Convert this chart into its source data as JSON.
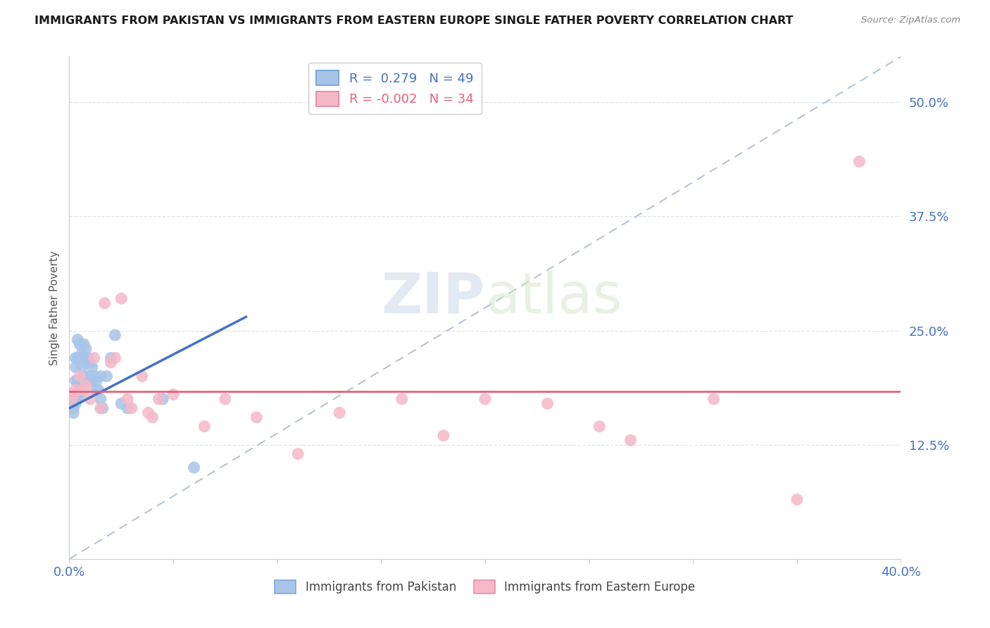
{
  "title": "IMMIGRANTS FROM PAKISTAN VS IMMIGRANTS FROM EASTERN EUROPE SINGLE FATHER POVERTY CORRELATION CHART",
  "source": "Source: ZipAtlas.com",
  "ylabel": "Single Father Poverty",
  "xlim": [
    0.0,
    0.4
  ],
  "ylim": [
    0.0,
    0.55
  ],
  "yticks": [
    0.125,
    0.25,
    0.375,
    0.5
  ],
  "ytick_labels": [
    "12.5%",
    "25.0%",
    "37.5%",
    "50.0%"
  ],
  "xticks": [
    0.0,
    0.05,
    0.1,
    0.15,
    0.2,
    0.25,
    0.3,
    0.35,
    0.4
  ],
  "xtick_labels": [
    "0.0%",
    "",
    "",
    "",
    "",
    "",
    "",
    "",
    "40.0%"
  ],
  "pakistan_color": "#a8c4e8",
  "eastern_europe_color": "#f5b8c8",
  "pakistan_R": 0.279,
  "pakistan_N": 49,
  "eastern_europe_R": -0.002,
  "eastern_europe_N": 34,
  "pakistan_line_color": "#4472c4",
  "eastern_europe_line_color": "#e8607a",
  "trendline_color": "#b8c4d0",
  "background_color": "#ffffff",
  "grid_color": "#dde4ee",
  "pakistan_x": [
    0.001,
    0.001,
    0.001,
    0.002,
    0.002,
    0.002,
    0.002,
    0.002,
    0.003,
    0.003,
    0.003,
    0.003,
    0.003,
    0.004,
    0.004,
    0.004,
    0.004,
    0.005,
    0.005,
    0.005,
    0.005,
    0.006,
    0.006,
    0.006,
    0.007,
    0.007,
    0.007,
    0.008,
    0.008,
    0.009,
    0.009,
    0.01,
    0.01,
    0.011,
    0.011,
    0.012,
    0.013,
    0.013,
    0.014,
    0.015,
    0.015,
    0.016,
    0.018,
    0.02,
    0.022,
    0.025,
    0.028,
    0.045,
    0.06
  ],
  "pakistan_y": [
    0.175,
    0.18,
    0.165,
    0.17,
    0.175,
    0.165,
    0.16,
    0.17,
    0.21,
    0.22,
    0.195,
    0.17,
    0.18,
    0.24,
    0.22,
    0.195,
    0.175,
    0.22,
    0.235,
    0.19,
    0.18,
    0.225,
    0.21,
    0.195,
    0.235,
    0.22,
    0.2,
    0.23,
    0.215,
    0.22,
    0.195,
    0.215,
    0.2,
    0.21,
    0.195,
    0.2,
    0.195,
    0.185,
    0.185,
    0.175,
    0.2,
    0.165,
    0.2,
    0.22,
    0.245,
    0.17,
    0.165,
    0.175,
    0.1
  ],
  "eastern_europe_x": [
    0.001,
    0.002,
    0.003,
    0.005,
    0.007,
    0.008,
    0.01,
    0.012,
    0.015,
    0.017,
    0.02,
    0.022,
    0.025,
    0.028,
    0.03,
    0.035,
    0.038,
    0.04,
    0.043,
    0.05,
    0.065,
    0.075,
    0.09,
    0.11,
    0.13,
    0.16,
    0.18,
    0.2,
    0.23,
    0.255,
    0.27,
    0.31,
    0.35,
    0.38
  ],
  "eastern_europe_y": [
    0.175,
    0.18,
    0.185,
    0.2,
    0.185,
    0.19,
    0.175,
    0.22,
    0.165,
    0.28,
    0.215,
    0.22,
    0.285,
    0.175,
    0.165,
    0.2,
    0.16,
    0.155,
    0.175,
    0.18,
    0.145,
    0.175,
    0.155,
    0.115,
    0.16,
    0.175,
    0.135,
    0.175,
    0.17,
    0.145,
    0.13,
    0.175,
    0.065,
    0.435
  ]
}
